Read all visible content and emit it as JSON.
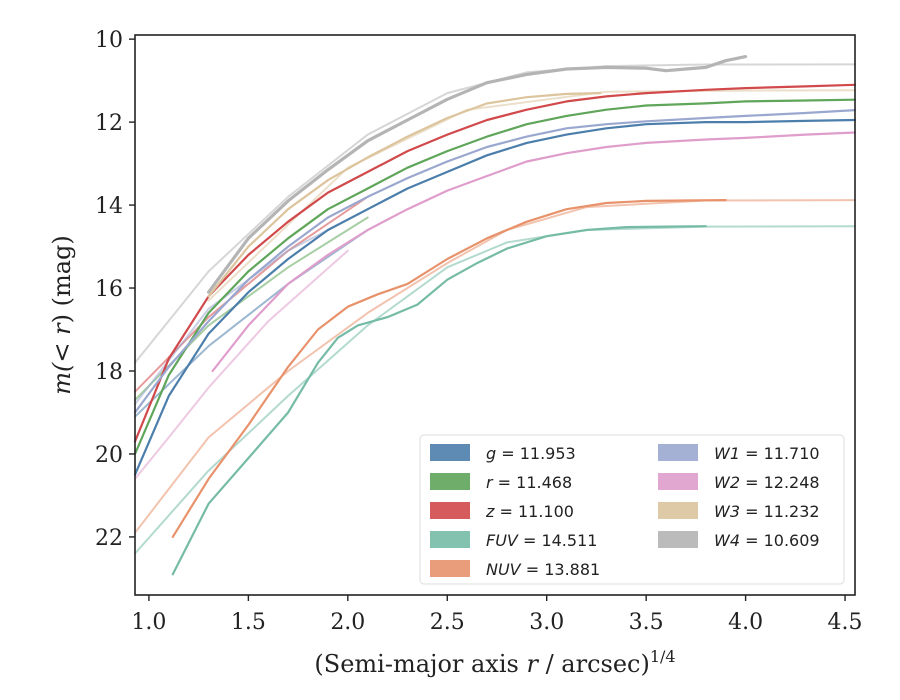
{
  "chart_data": {
    "type": "line",
    "xlabel": "(Semi-major axis r / arcsec)^1/4",
    "ylabel": "m(< r) (mag)",
    "xlim": [
      0.93,
      4.55
    ],
    "ylim": [
      23.4,
      9.9
    ],
    "y_inverted": true,
    "x_ticks": [
      "1.0",
      "1.5",
      "2.0",
      "2.5",
      "3.0",
      "3.5",
      "4.0",
      "4.5"
    ],
    "y_ticks": [
      "10",
      "12",
      "14",
      "16",
      "18",
      "20",
      "22"
    ],
    "legend_position": "lower-right",
    "legend_columns": 2,
    "series": [
      {
        "name": "g = 11.953",
        "label_var": "g",
        "label_val": "11.953",
        "color": "#4c7eab",
        "x": [
          0.93,
          1.1,
          1.3,
          1.5,
          1.7,
          1.9,
          2.1,
          2.3,
          2.5,
          2.7,
          2.9,
          3.1,
          3.3,
          3.5,
          3.8,
          4.0,
          4.3,
          4.55
        ],
        "y": [
          20.5,
          18.6,
          17.1,
          16.1,
          15.3,
          14.6,
          14.1,
          13.6,
          13.2,
          12.8,
          12.5,
          12.3,
          12.15,
          12.05,
          12.0,
          12.0,
          11.97,
          11.95
        ],
        "ext_x": [
          0.93,
          1.3,
          1.7,
          2.1
        ],
        "ext_y": [
          19.1,
          17.4,
          15.9,
          14.6
        ]
      },
      {
        "name": "r = 11.468",
        "label_var": "r",
        "label_val": "11.468",
        "color": "#5fa55a",
        "x": [
          0.93,
          1.1,
          1.3,
          1.5,
          1.7,
          1.9,
          2.1,
          2.3,
          2.5,
          2.7,
          2.9,
          3.1,
          3.3,
          3.5,
          3.8,
          4.0,
          4.3,
          4.55
        ],
        "y": [
          20.0,
          18.1,
          16.6,
          15.6,
          14.8,
          14.1,
          13.6,
          13.1,
          12.7,
          12.35,
          12.05,
          11.85,
          11.7,
          11.6,
          11.55,
          11.5,
          11.48,
          11.46
        ],
        "ext_x": [
          0.93,
          1.3,
          1.7,
          2.1
        ],
        "ext_y": [
          18.7,
          16.9,
          15.5,
          14.3
        ]
      },
      {
        "name": "z = 11.100",
        "label_var": "z",
        "label_val": "11.100",
        "color": "#d1494b",
        "x": [
          0.93,
          1.1,
          1.3,
          1.5,
          1.7,
          1.9,
          2.1,
          2.3,
          2.5,
          2.7,
          2.9,
          3.1,
          3.3,
          3.5,
          3.8,
          4.0,
          4.3,
          4.55
        ],
        "y": [
          19.7,
          17.7,
          16.2,
          15.2,
          14.4,
          13.7,
          13.2,
          12.7,
          12.3,
          11.95,
          11.7,
          11.5,
          11.38,
          11.3,
          11.22,
          11.18,
          11.14,
          11.1
        ],
        "ext_x": [
          0.93,
          1.3,
          1.7,
          2.1
        ],
        "ext_y": [
          18.5,
          16.7,
          15.1,
          13.8
        ]
      },
      {
        "name": "FUV = 14.511",
        "label_var": "FUV",
        "label_val": "14.511",
        "color": "#75bba6",
        "x": [
          1.12,
          1.3,
          1.5,
          1.7,
          1.85,
          1.95,
          2.05,
          2.2,
          2.35,
          2.5,
          2.65,
          2.8,
          3.0,
          3.2,
          3.4,
          3.6,
          3.8
        ],
        "y": [
          22.9,
          21.2,
          20.1,
          19.0,
          17.8,
          17.2,
          16.9,
          16.7,
          16.4,
          15.8,
          15.4,
          15.05,
          14.75,
          14.6,
          14.53,
          14.52,
          14.51
        ],
        "ext_x": [
          0.93,
          1.3,
          1.7,
          2.1,
          2.5,
          2.8,
          3.2,
          3.8,
          4.55
        ],
        "ext_y": [
          22.4,
          20.4,
          18.6,
          16.9,
          15.5,
          14.9,
          14.6,
          14.52,
          14.51
        ]
      },
      {
        "name": "NUV = 13.881",
        "label_var": "NUV",
        "label_val": "13.881",
        "color": "#e8926b",
        "x": [
          1.12,
          1.3,
          1.5,
          1.7,
          1.85,
          2.0,
          2.15,
          2.3,
          2.5,
          2.7,
          2.9,
          3.1,
          3.3,
          3.5,
          3.7,
          3.9
        ],
        "y": [
          22.0,
          20.6,
          19.3,
          17.9,
          17.0,
          16.45,
          16.15,
          15.9,
          15.3,
          14.8,
          14.4,
          14.1,
          13.95,
          13.9,
          13.89,
          13.88
        ],
        "ext_x": [
          0.93,
          1.3,
          1.7,
          2.1,
          2.5,
          2.8,
          3.2,
          3.8,
          4.55
        ],
        "ext_y": [
          21.9,
          19.6,
          18.0,
          16.6,
          15.4,
          14.6,
          14.05,
          13.89,
          13.88
        ]
      },
      {
        "name": "W1 = 11.710",
        "label_var": "W1",
        "label_val": "11.710",
        "color": "#9aa7cf",
        "x": [
          0.93,
          1.1,
          1.3,
          1.5,
          1.7,
          1.9,
          2.1,
          2.3,
          2.5,
          2.7,
          2.9,
          3.1,
          3.3,
          3.5,
          3.8,
          4.0,
          4.3,
          4.55
        ],
        "y": [
          19.0,
          17.9,
          16.8,
          15.8,
          15.0,
          14.3,
          13.8,
          13.35,
          12.95,
          12.6,
          12.35,
          12.15,
          12.05,
          11.98,
          11.9,
          11.85,
          11.78,
          11.71
        ],
        "ext_x": [
          0.93,
          1.3,
          1.7,
          2.1
        ],
        "ext_y": [
          18.8,
          16.5,
          15.1,
          14.1
        ]
      },
      {
        "name": "W2 = 12.248",
        "label_var": "W2",
        "label_val": "12.248",
        "color": "#df9dcb",
        "x": [
          1.32,
          1.5,
          1.7,
          1.9,
          2.1,
          2.3,
          2.5,
          2.7,
          2.9,
          3.1,
          3.3,
          3.5,
          3.8,
          4.0,
          4.3,
          4.55
        ],
        "y": [
          18.0,
          16.9,
          15.9,
          15.2,
          14.6,
          14.1,
          13.65,
          13.3,
          12.95,
          12.75,
          12.6,
          12.5,
          12.42,
          12.38,
          12.3,
          12.25
        ],
        "ext_x": [
          0.93,
          1.1,
          1.3,
          1.6,
          2.0
        ],
        "ext_y": [
          20.6,
          19.6,
          18.4,
          16.8,
          15.1
        ]
      },
      {
        "name": "W3 = 11.232",
        "label_var": "W3",
        "label_val": "11.232",
        "color": "#dcc49d",
        "x": [
          1.3,
          1.5,
          1.7,
          1.9,
          2.1,
          2.3,
          2.5,
          2.7,
          2.9,
          3.1,
          3.27
        ],
        "y": [
          16.2,
          15.0,
          14.1,
          13.4,
          12.85,
          12.35,
          11.9,
          11.55,
          11.4,
          11.32,
          11.3
        ],
        "ext_x": [
          1.3,
          2.0,
          2.6,
          3.3,
          4.0,
          4.55
        ],
        "ext_y": [
          16.3,
          13.1,
          11.7,
          11.27,
          11.24,
          11.23
        ]
      },
      {
        "name": "W4 = 10.609",
        "label_var": "W4",
        "label_val": "10.609",
        "color": "#b4b4b4",
        "x": [
          1.3,
          1.5,
          1.7,
          1.9,
          2.1,
          2.3,
          2.5,
          2.7,
          2.9,
          3.1,
          3.3,
          3.5,
          3.6,
          3.7,
          3.8,
          3.9,
          4.0
        ],
        "y": [
          16.1,
          14.8,
          13.9,
          13.15,
          12.45,
          11.95,
          11.45,
          11.05,
          10.85,
          10.72,
          10.68,
          10.7,
          10.76,
          10.72,
          10.68,
          10.52,
          10.42
        ],
        "ext_x": [
          0.93,
          1.3,
          1.7,
          2.1,
          2.5,
          2.9,
          3.3,
          3.8,
          4.55
        ],
        "ext_y": [
          17.8,
          15.6,
          13.8,
          12.3,
          11.3,
          10.8,
          10.65,
          10.61,
          10.609
        ]
      }
    ]
  }
}
